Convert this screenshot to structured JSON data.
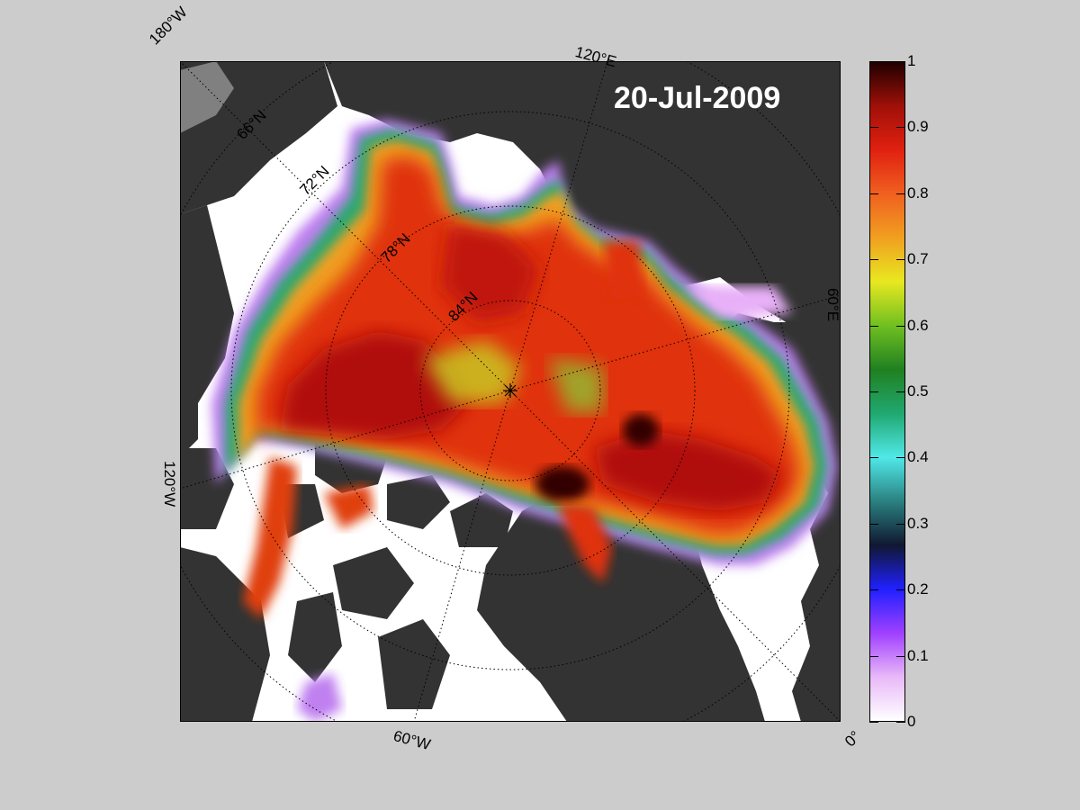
{
  "map": {
    "date_label": "20-Jul-2009",
    "projection": "north polar stereographic",
    "variable": "sea ice concentration",
    "longitude_labels": {
      "top_left": "180°W",
      "top": "120°E",
      "right": "60°E",
      "bottom_right": "0°",
      "bottom": "60°W",
      "left": "120°W"
    },
    "latitude_labels": [
      "66°N",
      "72°N",
      "78°N",
      "84°N"
    ],
    "colors": {
      "background": "#cccccc",
      "ocean": "#ffffff",
      "land": "#333333",
      "ice_sheet": "#808080",
      "pole_marker": "#000000"
    }
  },
  "colorbar": {
    "ticks": [
      "0",
      "0.1",
      "0.2",
      "0.3",
      "0.4",
      "0.5",
      "0.6",
      "0.7",
      "0.8",
      "0.9",
      "1"
    ],
    "range": [
      0,
      1
    ],
    "colormap": [
      "#ffffff",
      "#e8b8f8",
      "#a040ff",
      "#2020ff",
      "#101830",
      "#2a8080",
      "#50e8e8",
      "#20a870",
      "#208020",
      "#70c020",
      "#e8e820",
      "#f0a020",
      "#f06020",
      "#e02010",
      "#a01008",
      "#200000"
    ]
  }
}
